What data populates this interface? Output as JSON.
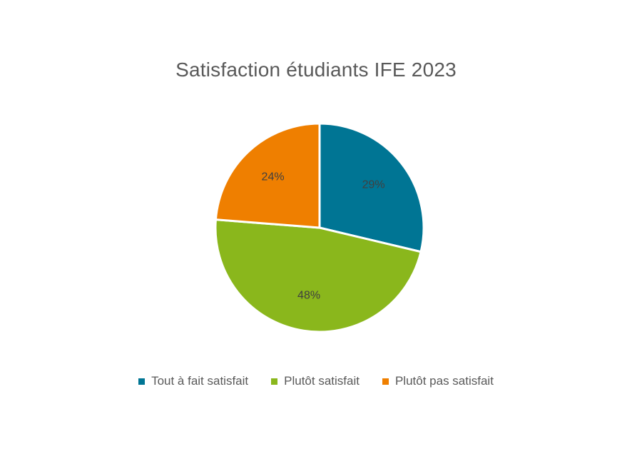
{
  "chart_data": {
    "type": "pie",
    "title": "Satisfaction étudiants IFE 2023",
    "categories": [
      "Tout à fait satisfait",
      "Plutôt satisfait",
      "Plutôt pas satisfait"
    ],
    "values": [
      29,
      48,
      24
    ],
    "data_labels": [
      "29%",
      "48%",
      "24%"
    ],
    "colors": [
      "#007594",
      "#8ab71c",
      "#ef7f00"
    ],
    "legend_position": "bottom"
  }
}
